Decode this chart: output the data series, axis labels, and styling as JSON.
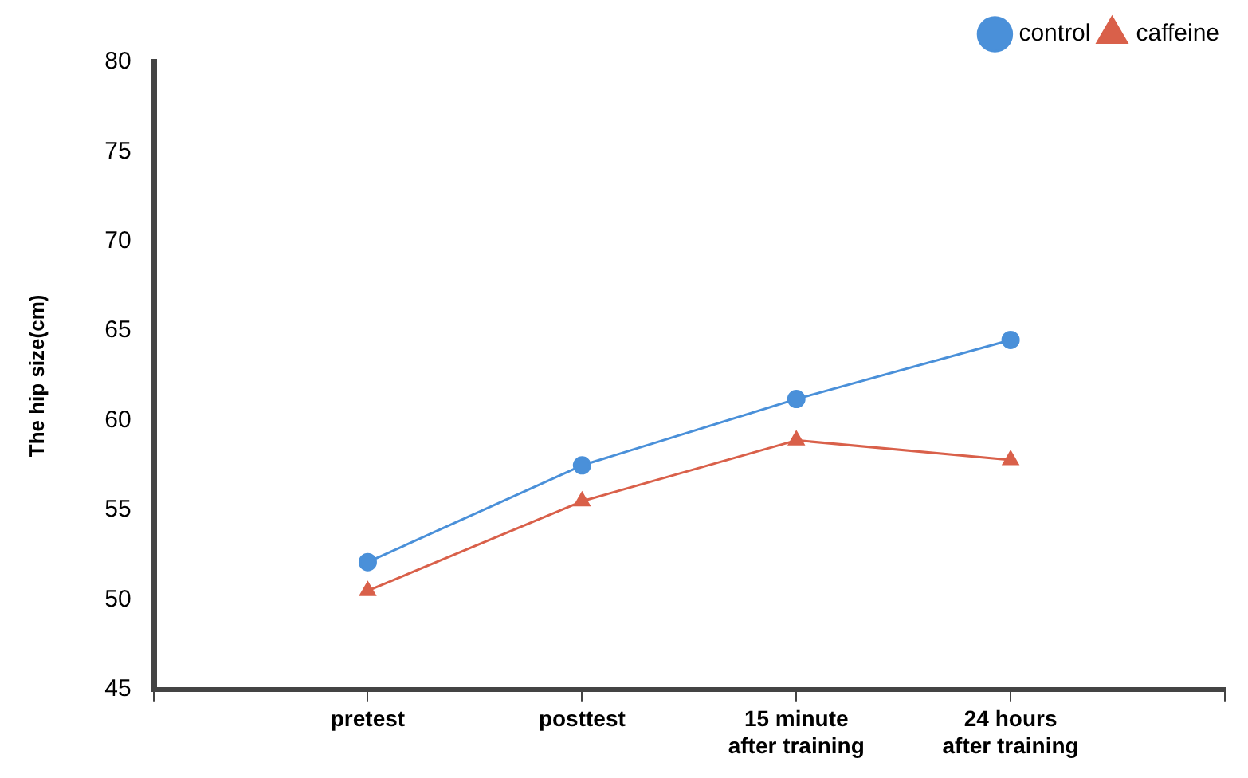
{
  "chart_data": {
    "type": "line",
    "ylabel": "The hip size(cm)",
    "categories": [
      null,
      "pretest",
      "posttest",
      "15 minute\nafter training",
      "24 hours\nafter training",
      null
    ],
    "series": [
      {
        "name": "control",
        "color": "#4a90d9",
        "values": [
          null,
          52.1,
          57.5,
          61.2,
          64.5,
          null
        ],
        "marker": "circle"
      },
      {
        "name": "caffeine",
        "color": "#d9604a",
        "values": [
          null,
          50.5,
          55.5,
          58.9,
          57.8,
          null
        ],
        "marker": "triangle"
      }
    ],
    "ylim": [
      45,
      80
    ],
    "yticks": [
      45,
      50,
      55,
      60,
      65,
      70,
      75,
      80
    ],
    "grid": false,
    "legend": "top right",
    "line_style": "solid"
  }
}
